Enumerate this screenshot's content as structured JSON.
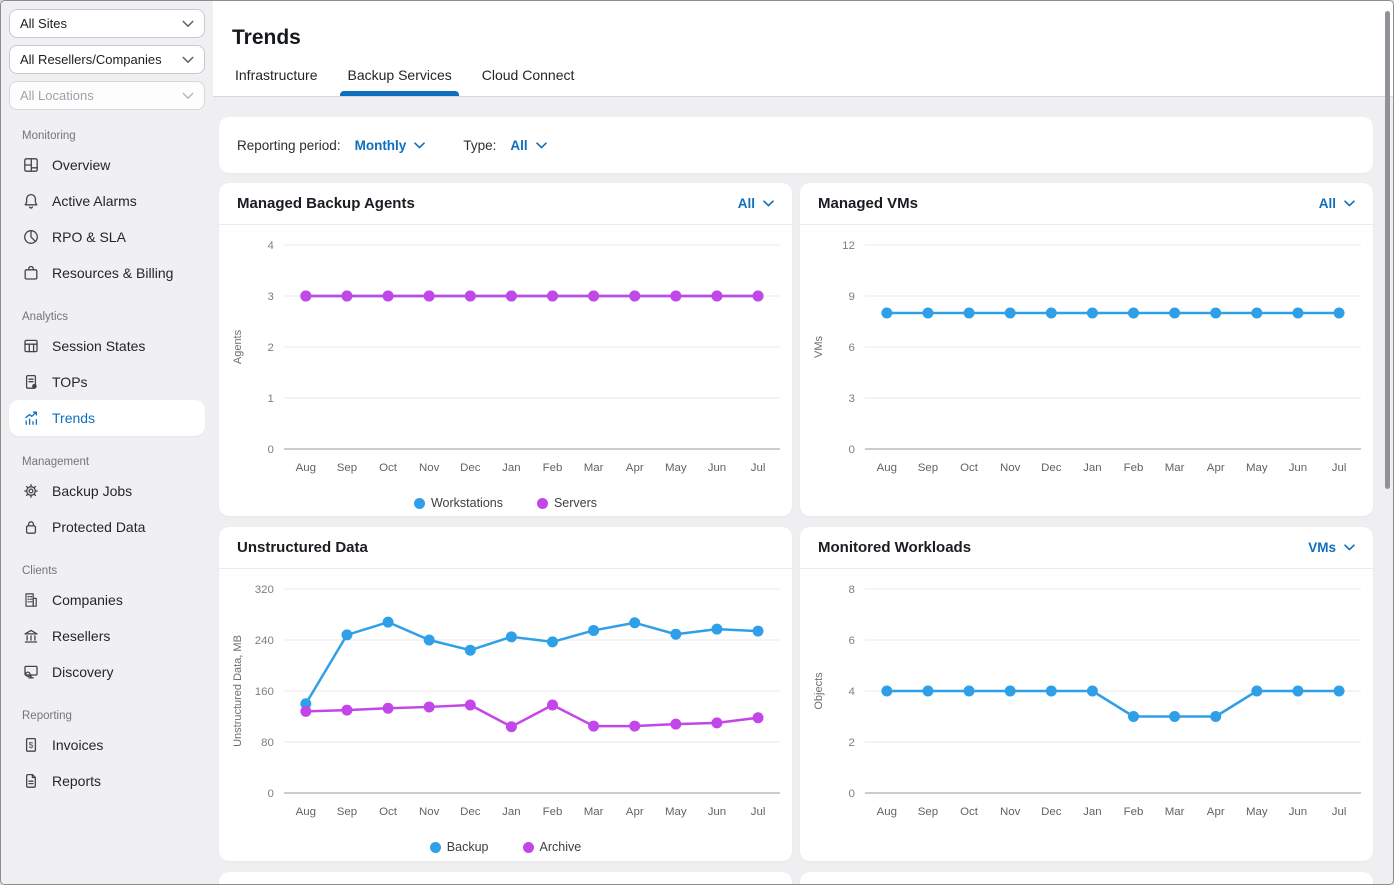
{
  "colors": {
    "accent_blue": "#0d6fbe",
    "chart_blue": "#2f9fe8",
    "chart_magenta": "#c346e8",
    "grid_line": "#e8e8eb",
    "axis_line": "#b9bcc1"
  },
  "sidebar": {
    "selectors": [
      {
        "value": "All Sites",
        "disabled": false
      },
      {
        "value": "All Resellers/Companies",
        "disabled": false
      },
      {
        "value": "All Locations",
        "disabled": true
      }
    ],
    "sections": [
      {
        "title": "Monitoring",
        "items": [
          {
            "label": "Overview",
            "icon": "overview-icon",
            "selected": false
          },
          {
            "label": "Active Alarms",
            "icon": "alarm-bell-icon",
            "selected": false
          },
          {
            "label": "RPO & SLA",
            "icon": "pie-chart-icon",
            "selected": false
          },
          {
            "label": "Resources & Billing",
            "icon": "briefcase-icon",
            "selected": false
          }
        ]
      },
      {
        "title": "Analytics",
        "items": [
          {
            "label": "Session States",
            "icon": "table-grid-icon",
            "selected": false
          },
          {
            "label": "TOPs",
            "icon": "document-gear-icon",
            "selected": false
          },
          {
            "label": "Trends",
            "icon": "trend-chart-icon",
            "selected": true
          }
        ]
      },
      {
        "title": "Management",
        "items": [
          {
            "label": "Backup Jobs",
            "icon": "gear-icon",
            "selected": false
          },
          {
            "label": "Protected Data",
            "icon": "lock-icon",
            "selected": false
          }
        ]
      },
      {
        "title": "Clients",
        "items": [
          {
            "label": "Companies",
            "icon": "building-icon",
            "selected": false
          },
          {
            "label": "Resellers",
            "icon": "bank-icon",
            "selected": false
          },
          {
            "label": "Discovery",
            "icon": "monitor-search-icon",
            "selected": false
          }
        ]
      },
      {
        "title": "Reporting",
        "items": [
          {
            "label": "Invoices",
            "icon": "invoice-icon",
            "selected": false
          },
          {
            "label": "Reports",
            "icon": "report-icon",
            "selected": false
          }
        ]
      }
    ]
  },
  "header": {
    "title": "Trends",
    "tabs": [
      {
        "label": "Infrastructure",
        "active": false
      },
      {
        "label": "Backup Services",
        "active": true
      },
      {
        "label": "Cloud Connect",
        "active": false
      }
    ]
  },
  "filter_bar": {
    "reporting_period_label": "Reporting period:",
    "reporting_period_value": "Monthly",
    "type_label": "Type:",
    "type_value": "All"
  },
  "chart_data": [
    {
      "type": "line",
      "title": "Managed Backup Agents",
      "dropdown": "All",
      "ylabel": "Agents",
      "ylim": [
        0,
        4
      ],
      "yticks": [
        0,
        1,
        2,
        3,
        4
      ],
      "categories": [
        "Aug",
        "Sep",
        "Oct",
        "Nov",
        "Dec",
        "Jan",
        "Feb",
        "Mar",
        "Apr",
        "May",
        "Jun",
        "Jul"
      ],
      "series": [
        {
          "name": "Workstations",
          "color": "#2f9fe8",
          "values": [
            3,
            3,
            3,
            3,
            3,
            3,
            3,
            3,
            3,
            3,
            3,
            3
          ]
        },
        {
          "name": "Servers",
          "color": "#c346e8",
          "values": [
            3,
            3,
            3,
            3,
            3,
            3,
            3,
            3,
            3,
            3,
            3,
            3
          ]
        }
      ],
      "legend": true,
      "grid": true
    },
    {
      "type": "line",
      "title": "Managed VMs",
      "dropdown": "All",
      "ylabel": "VMs",
      "ylim": [
        0,
        12
      ],
      "yticks": [
        0,
        3,
        6,
        9,
        12
      ],
      "categories": [
        "Aug",
        "Sep",
        "Oct",
        "Nov",
        "Dec",
        "Jan",
        "Feb",
        "Mar",
        "Apr",
        "May",
        "Jun",
        "Jul"
      ],
      "series": [
        {
          "name": "VMs",
          "color": "#2f9fe8",
          "values": [
            8,
            8,
            8,
            8,
            8,
            8,
            8,
            8,
            8,
            8,
            8,
            8
          ]
        }
      ],
      "legend": false,
      "grid": true
    },
    {
      "type": "line",
      "title": "Unstructured Data",
      "dropdown": null,
      "ylabel": "Unstructured Data, MB",
      "ylim": [
        0,
        320
      ],
      "yticks": [
        0,
        80,
        160,
        240,
        320
      ],
      "categories": [
        "Aug",
        "Sep",
        "Oct",
        "Nov",
        "Dec",
        "Jan",
        "Feb",
        "Mar",
        "Apr",
        "May",
        "Jun",
        "Jul"
      ],
      "series": [
        {
          "name": "Backup",
          "color": "#2f9fe8",
          "values": [
            140,
            248,
            268,
            240,
            224,
            245,
            237,
            255,
            267,
            249,
            257,
            254
          ]
        },
        {
          "name": "Archive",
          "color": "#c346e8",
          "values": [
            128,
            130,
            133,
            135,
            138,
            104,
            138,
            105,
            105,
            108,
            110,
            118
          ]
        }
      ],
      "legend": true,
      "grid": true
    },
    {
      "type": "line",
      "title": "Monitored Workloads",
      "dropdown": "VMs",
      "ylabel": "Objects",
      "ylim": [
        0,
        8
      ],
      "yticks": [
        0,
        2,
        4,
        6,
        8
      ],
      "categories": [
        "Aug",
        "Sep",
        "Oct",
        "Nov",
        "Dec",
        "Jan",
        "Feb",
        "Mar",
        "Apr",
        "May",
        "Jun",
        "Jul"
      ],
      "series": [
        {
          "name": "VMs",
          "color": "#2f9fe8",
          "values": [
            4,
            4,
            4,
            4,
            4,
            4,
            3,
            3,
            3,
            4,
            4,
            4
          ]
        }
      ],
      "legend": false,
      "grid": true
    }
  ]
}
